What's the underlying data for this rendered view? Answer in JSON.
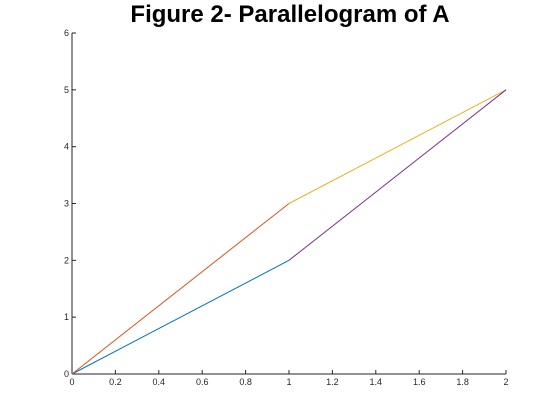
{
  "chart_data": {
    "type": "line",
    "title": "Figure 2- Parallelogram of A",
    "xlabel": "",
    "ylabel": "",
    "xlim": [
      0,
      2
    ],
    "ylim": [
      0,
      6
    ],
    "xticks": [
      0,
      0.2,
      0.4,
      0.6,
      0.8,
      1,
      1.2,
      1.4,
      1.6,
      1.8,
      2
    ],
    "yticks": [
      0,
      1,
      2,
      3,
      4,
      5,
      6
    ],
    "grid": false,
    "legend": false,
    "series": [
      {
        "color": "#0072BD",
        "x": [
          0,
          1
        ],
        "y": [
          0,
          2
        ]
      },
      {
        "color": "#D95319",
        "x": [
          0,
          1
        ],
        "y": [
          0,
          3
        ]
      },
      {
        "color": "#EDB120",
        "x": [
          1,
          2
        ],
        "y": [
          3,
          5
        ]
      },
      {
        "color": "#7E2F8E",
        "x": [
          1,
          2
        ],
        "y": [
          2,
          5
        ]
      }
    ]
  }
}
